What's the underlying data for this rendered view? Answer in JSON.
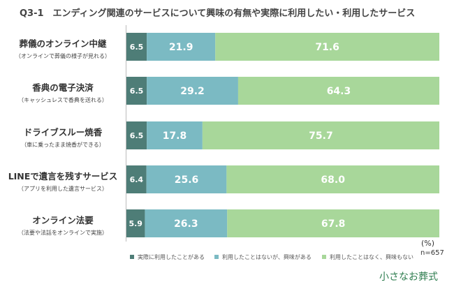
{
  "title": "Q3-1　エンディング関連のサービスについて興味の有無や実際に利用したい・利用したサービス",
  "unit": "(%)",
  "n": "n=657",
  "brand": "小さなお葬式",
  "colors": {
    "used": "#4e7d77",
    "interested": "#7bbac3",
    "not_interested": "#a8d79a",
    "label_dark_bg": "#ffffff"
  },
  "chart_data": {
    "type": "bar",
    "orientation": "horizontal",
    "stacked": true,
    "xlim": [
      0,
      100
    ],
    "categories": [
      {
        "name": "葬儀のオンライン中継",
        "sub": "（オンラインで葬儀の様子が見れる）"
      },
      {
        "name": "香典の電子決済",
        "sub": "（キャッシュレスで香典を送れる）"
      },
      {
        "name": "ドライブスルー焼香",
        "sub": "（車に乗ったまま焼香ができる）"
      },
      {
        "name": "LINEで遺言を残すサービス",
        "sub": "（アプリを利用した遺言サービス）"
      },
      {
        "name": "オンライン法要",
        "sub": "（法要や法話をオンラインで実施）"
      }
    ],
    "series": [
      {
        "name": "実際に利用したことがある",
        "values": [
          6.5,
          6.5,
          6.5,
          6.4,
          5.9
        ]
      },
      {
        "name": "利用したことはないが、興味がある",
        "values": [
          21.9,
          29.2,
          17.8,
          25.6,
          26.3
        ]
      },
      {
        "name": "利用したことはなく、興味もない",
        "values": [
          71.6,
          64.3,
          75.7,
          68.0,
          67.8
        ]
      }
    ]
  }
}
